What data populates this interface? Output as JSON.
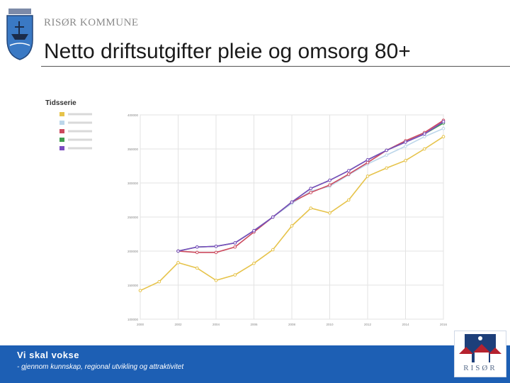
{
  "header": {
    "organization": "RISØR KOMMUNE",
    "title": "Netto driftsutgifter pleie og omsorg 80+"
  },
  "footer": {
    "title": "Vi skal vokse",
    "subtitle": "- gjennom kunnskap, regional utvikling og attraktivitet",
    "logo_text": "RISØR"
  },
  "colors": {
    "footer_band": "#1d5fb4",
    "series": [
      "#e6c34a",
      "#bcd6ea",
      "#cc4a5e",
      "#3f9d4f",
      "#7a4bc0"
    ]
  },
  "chart_data": {
    "type": "line",
    "title": "Tidsserie",
    "x": [
      2000,
      2001,
      2002,
      2003,
      2004,
      2005,
      2006,
      2007,
      2008,
      2009,
      2010,
      2011,
      2012,
      2013,
      2014,
      2015,
      2016
    ],
    "xticks": [
      2000,
      2002,
      2004,
      2006,
      2008,
      2010,
      2012,
      2014,
      2016
    ],
    "ytick_values": [
      100000,
      150000,
      200000,
      250000,
      300000,
      350000,
      400000
    ],
    "ylim": [
      100000,
      400000
    ],
    "grid": true,
    "legend_position": "left",
    "series": [
      {
        "values": [
          142000,
          155000,
          183000,
          175000,
          157000,
          165000,
          182000,
          202000,
          237000,
          263000,
          256000,
          275000,
          310000,
          322000,
          333000,
          350000,
          368000
        ]
      },
      {
        "values": [
          null,
          null,
          200000,
          206000,
          207000,
          212000,
          230000,
          250000,
          270000,
          288000,
          295000,
          312000,
          328000,
          341000,
          354000,
          368000,
          380000
        ]
      },
      {
        "values": [
          null,
          null,
          200000,
          198000,
          198000,
          206000,
          228000,
          250000,
          272000,
          286000,
          297000,
          313000,
          330000,
          348000,
          362000,
          374000,
          392000
        ]
      },
      {
        "values": [
          null,
          null,
          200000,
          206000,
          207000,
          212000,
          230000,
          250000,
          272000,
          292000,
          304000,
          318000,
          334000,
          348000,
          360000,
          372000,
          388000
        ]
      },
      {
        "values": [
          null,
          null,
          200000,
          206000,
          207000,
          212000,
          230000,
          250000,
          272000,
          292000,
          304000,
          318000,
          334000,
          348000,
          360000,
          372000,
          390000
        ]
      }
    ]
  }
}
